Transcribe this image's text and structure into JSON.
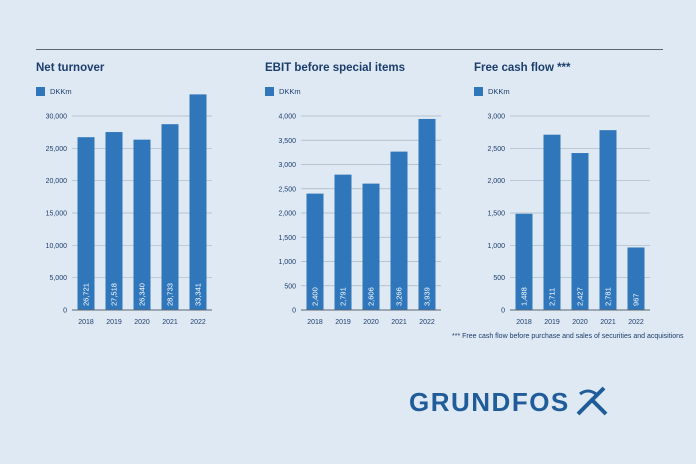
{
  "chart_data": [
    {
      "type": "bar",
      "title": "Net turnover",
      "legend": "DKKm",
      "categories": [
        "2018",
        "2019",
        "2020",
        "2021",
        "2022"
      ],
      "values": [
        26721,
        27518,
        26340,
        28733,
        33341
      ],
      "value_labels": [
        "26,721",
        "27,518",
        "26,340",
        "28,733",
        "33,341"
      ],
      "yticks": [
        0,
        5000,
        10000,
        15000,
        20000,
        25000,
        30000
      ],
      "ytick_labels": [
        "0",
        "5,000",
        "10,000",
        "15,000",
        "20,000",
        "25,000",
        "30,000"
      ],
      "ylim": [
        0,
        30000
      ],
      "grid": true
    },
    {
      "type": "bar",
      "title": "EBIT before special items",
      "legend": "DKKm",
      "categories": [
        "2018",
        "2019",
        "2020",
        "2021",
        "2022"
      ],
      "values": [
        2400,
        2791,
        2606,
        3266,
        3939
      ],
      "value_labels": [
        "2,400",
        "2,791",
        "2,606",
        "3,266",
        "3,939"
      ],
      "yticks": [
        0,
        500,
        1000,
        1500,
        2000,
        2500,
        3000,
        3500,
        4000
      ],
      "ytick_labels": [
        "0",
        "500",
        "1,000",
        "1,500",
        "2,000",
        "2,500",
        "3,000",
        "3,500",
        "4,000"
      ],
      "ylim": [
        0,
        4000
      ],
      "grid": true
    },
    {
      "type": "bar",
      "title": "Free cash flow ***",
      "legend": "DKKm",
      "categories": [
        "2018",
        "2019",
        "2020",
        "2021",
        "2022"
      ],
      "values": [
        1488,
        2711,
        2427,
        2781,
        967
      ],
      "value_labels": [
        "1,488",
        "2,711",
        "2,427",
        "2,781",
        "967"
      ],
      "yticks": [
        0,
        500,
        1000,
        1500,
        2000,
        2500,
        3000
      ],
      "ytick_labels": [
        "0",
        "500",
        "1,000",
        "1,500",
        "2,000",
        "2,500",
        "3,000"
      ],
      "ylim": [
        0,
        3000
      ],
      "grid": true
    }
  ],
  "footnote": "*** Free cash flow before purchase and sales of securities and acquisitions",
  "logo_text": "GRUNDFOS",
  "colors": {
    "bar": "#2f76ba",
    "title": "#1b3d6d",
    "grid": "#a9b7c4",
    "axis": "#5b6770",
    "background": "#dfe9f3"
  }
}
